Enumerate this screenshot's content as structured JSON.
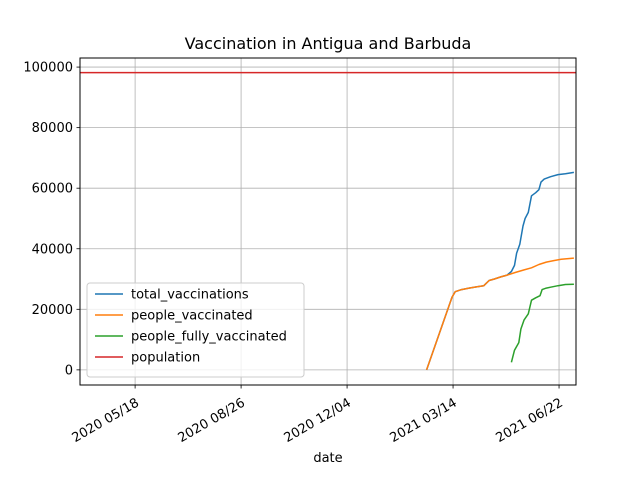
{
  "chart_data": {
    "type": "line",
    "title": "Vaccination in Antigua and Barbuda",
    "xlabel": "date",
    "ylabel": "",
    "x_type": "date",
    "xlim": [
      "2020-03-27",
      "2021-07-08"
    ],
    "ylim": [
      -5000,
      103000
    ],
    "grid": true,
    "legend_position": "lower-left",
    "x_ticks": [
      {
        "date": "2020-05-18",
        "label": "2020 05/18"
      },
      {
        "date": "2020-08-26",
        "label": "2020 08/26"
      },
      {
        "date": "2020-12-04",
        "label": "2020 12/04"
      },
      {
        "date": "2021-03-14",
        "label": "2021 03/14"
      },
      {
        "date": "2021-06-22",
        "label": "2021 06/22"
      }
    ],
    "y_ticks": [
      {
        "value": 0,
        "label": "0"
      },
      {
        "value": 20000,
        "label": "20000"
      },
      {
        "value": 40000,
        "label": "40000"
      },
      {
        "value": 60000,
        "label": "60000"
      },
      {
        "value": 80000,
        "label": "80000"
      },
      {
        "value": 100000,
        "label": "100000"
      }
    ],
    "series": [
      {
        "name": "total_vaccinations",
        "color": "#1f77b4",
        "points": [
          [
            "2021-02-17",
            0
          ],
          [
            "2021-03-13",
            24000
          ],
          [
            "2021-03-16",
            25800
          ],
          [
            "2021-03-22",
            26500
          ],
          [
            "2021-03-29",
            27000
          ],
          [
            "2021-04-05",
            27400
          ],
          [
            "2021-04-12",
            27800
          ],
          [
            "2021-04-17",
            29500
          ],
          [
            "2021-04-22",
            30000
          ],
          [
            "2021-04-28",
            30700
          ],
          [
            "2021-05-04",
            31300
          ],
          [
            "2021-05-08",
            32500
          ],
          [
            "2021-05-11",
            34500
          ],
          [
            "2021-05-13",
            38500
          ],
          [
            "2021-05-16",
            41500
          ],
          [
            "2021-05-19",
            47500
          ],
          [
            "2021-05-21",
            50000
          ],
          [
            "2021-05-24",
            52000
          ],
          [
            "2021-05-27",
            57500
          ],
          [
            "2021-05-31",
            58500
          ],
          [
            "2021-06-03",
            59500
          ],
          [
            "2021-06-05",
            62000
          ],
          [
            "2021-06-08",
            63000
          ],
          [
            "2021-06-14",
            63800
          ],
          [
            "2021-06-21",
            64500
          ],
          [
            "2021-06-28",
            64800
          ],
          [
            "2021-07-06",
            65200
          ]
        ]
      },
      {
        "name": "people_vaccinated",
        "color": "#ff7f0e",
        "points": [
          [
            "2021-02-17",
            0
          ],
          [
            "2021-03-13",
            24000
          ],
          [
            "2021-03-16",
            25800
          ],
          [
            "2021-03-22",
            26500
          ],
          [
            "2021-03-29",
            27000
          ],
          [
            "2021-04-05",
            27400
          ],
          [
            "2021-04-12",
            27800
          ],
          [
            "2021-04-17",
            29500
          ],
          [
            "2021-04-22",
            30000
          ],
          [
            "2021-04-28",
            30700
          ],
          [
            "2021-05-04",
            31300
          ],
          [
            "2021-05-12",
            32200
          ],
          [
            "2021-05-20",
            33000
          ],
          [
            "2021-05-27",
            33700
          ],
          [
            "2021-06-03",
            34800
          ],
          [
            "2021-06-10",
            35600
          ],
          [
            "2021-06-17",
            36100
          ],
          [
            "2021-06-24",
            36500
          ],
          [
            "2021-07-06",
            36900
          ]
        ]
      },
      {
        "name": "people_fully_vaccinated",
        "color": "#2ca02c",
        "points": [
          [
            "2021-05-08",
            2500
          ],
          [
            "2021-05-11",
            6500
          ],
          [
            "2021-05-15",
            9000
          ],
          [
            "2021-05-17",
            13500
          ],
          [
            "2021-05-20",
            16500
          ],
          [
            "2021-05-24",
            18500
          ],
          [
            "2021-05-27",
            23000
          ],
          [
            "2021-05-31",
            23800
          ],
          [
            "2021-06-04",
            24500
          ],
          [
            "2021-06-06",
            26500
          ],
          [
            "2021-06-10",
            27000
          ],
          [
            "2021-06-14",
            27300
          ],
          [
            "2021-06-21",
            27800
          ],
          [
            "2021-06-28",
            28200
          ],
          [
            "2021-07-06",
            28300
          ]
        ]
      },
      {
        "name": "population",
        "color": "#d62728",
        "points": [
          [
            "2020-03-27",
            98179
          ],
          [
            "2021-07-08",
            98179
          ]
        ]
      }
    ]
  }
}
